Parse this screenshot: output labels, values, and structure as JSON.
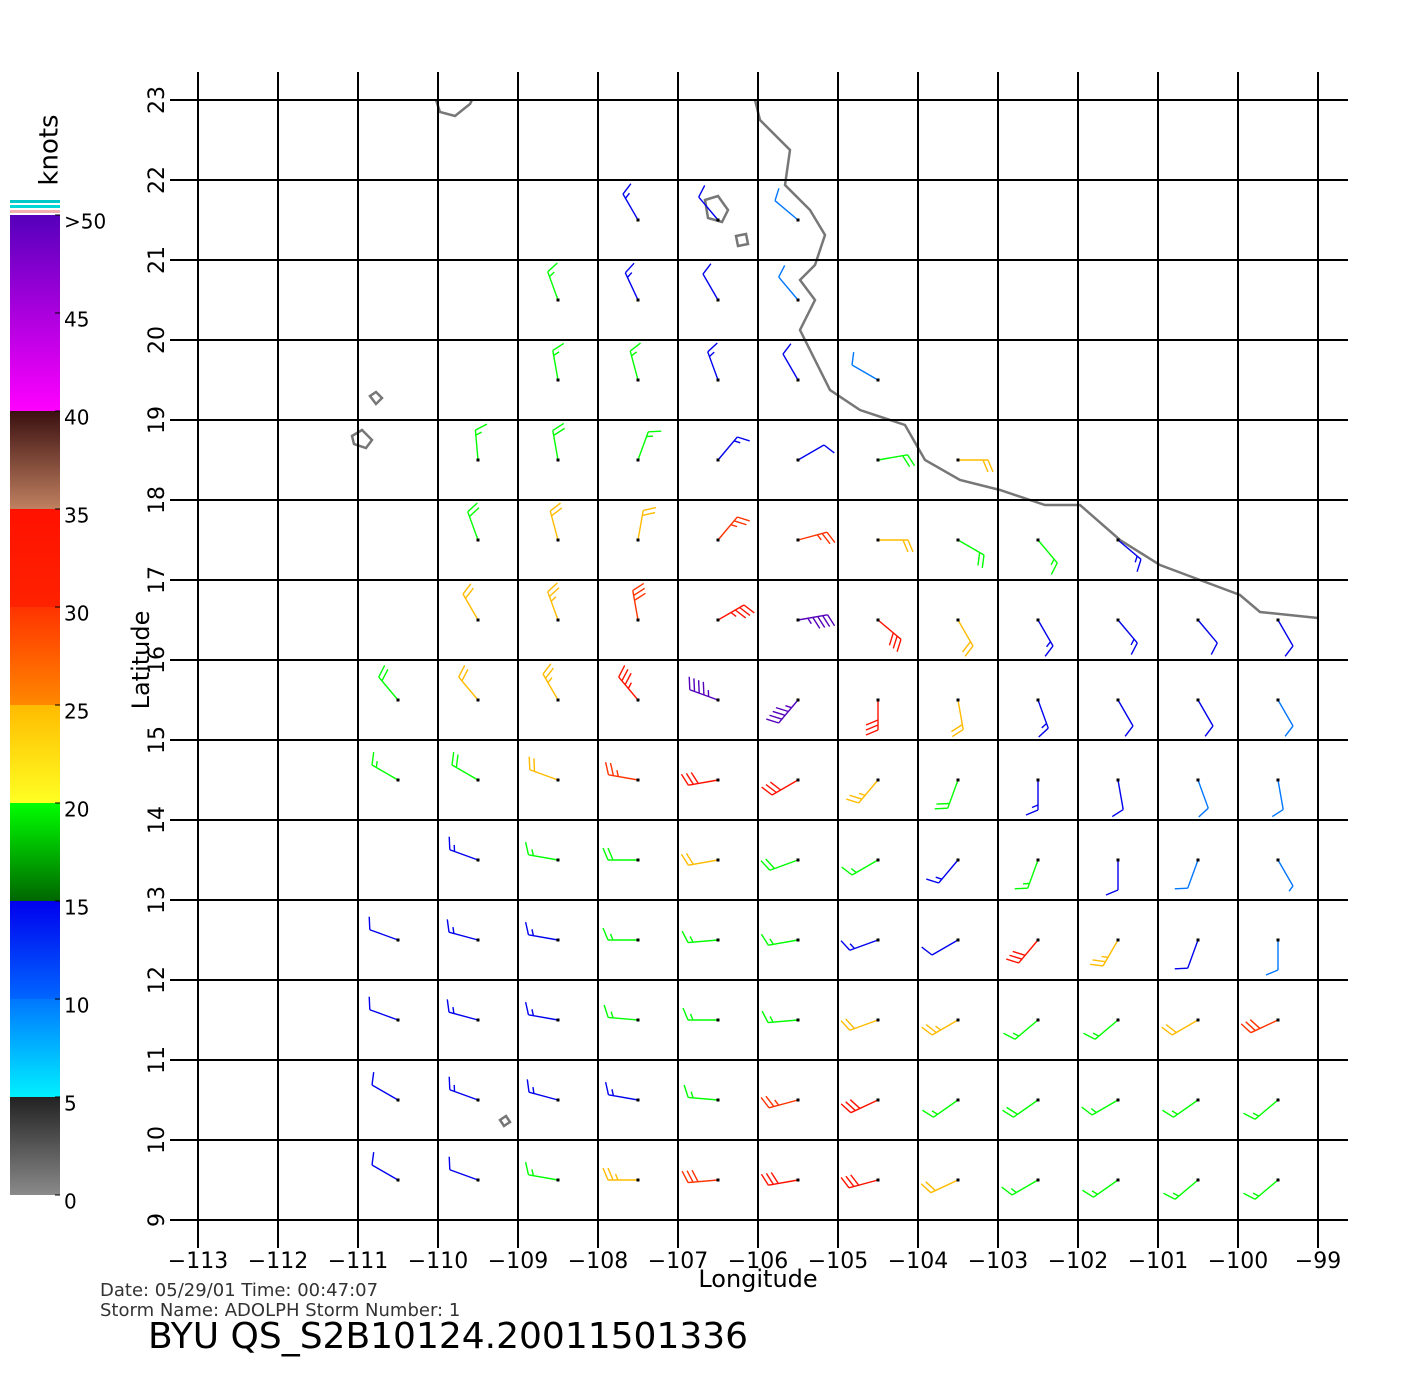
{
  "map": {
    "title": "BYU  QS_S2B10124.20011501336",
    "date_line": "Date:  05/29/01    Time:  00:47:07",
    "storm_line": "Storm  Name:  ADOLPH    Storm  Number:  1",
    "xlabel": "Longitude",
    "ylabel": "Latitude",
    "xlim": [
      -113,
      -99
    ],
    "ylim": [
      9,
      23
    ],
    "xticks": [
      {
        "value": -113,
        "label": "−113"
      },
      {
        "value": -112,
        "label": "−112"
      },
      {
        "value": -111,
        "label": "−111"
      },
      {
        "value": -110,
        "label": "−110"
      },
      {
        "value": -109,
        "label": "−109"
      },
      {
        "value": -108,
        "label": "−108"
      },
      {
        "value": -107,
        "label": "−107"
      },
      {
        "value": -106,
        "label": "−106"
      },
      {
        "value": -105,
        "label": "−105"
      },
      {
        "value": -104,
        "label": "−104"
      },
      {
        "value": -103,
        "label": "−103"
      },
      {
        "value": -102,
        "label": "−102"
      },
      {
        "value": -101,
        "label": "−101"
      },
      {
        "value": -100,
        "label": "−100"
      },
      {
        "value": -99,
        "label": "−99"
      }
    ],
    "yticks": [
      9,
      10,
      11,
      12,
      13,
      14,
      15,
      16,
      17,
      18,
      19,
      20,
      21,
      22,
      23
    ],
    "colorbar": {
      "title": "knots",
      "lim": [
        0,
        50
      ],
      "ticks": [
        0,
        5,
        10,
        15,
        20,
        25,
        30,
        35,
        40,
        45,
        {
          "value": 50,
          "label": ">50"
        }
      ],
      "bands": [
        {
          "from": 0,
          "to": 5,
          "colors": [
            "#8a8a8a",
            "#222222"
          ]
        },
        {
          "from": 5,
          "to": 10,
          "colors": [
            "#00f0ff",
            "#0077ff"
          ]
        },
        {
          "from": 10,
          "to": 15,
          "colors": [
            "#0066ff",
            "#0000ee"
          ]
        },
        {
          "from": 15,
          "to": 20,
          "colors": [
            "#006600",
            "#00ff00"
          ]
        },
        {
          "from": 20,
          "to": 25,
          "colors": [
            "#ffff22",
            "#ffbb00"
          ]
        },
        {
          "from": 25,
          "to": 30,
          "colors": [
            "#ff8800",
            "#ff3300"
          ]
        },
        {
          "from": 30,
          "to": 35,
          "colors": [
            "#ff2200",
            "#ff1100"
          ]
        },
        {
          "from": 35,
          "to": 40,
          "colors": [
            "#c08060",
            "#3a1010"
          ]
        },
        {
          "from": 40,
          "to": 50,
          "colors": [
            "#ff00ff",
            "#5500bb"
          ]
        }
      ]
    },
    "barbs": [
      [
        -107.5,
        21.5,
        14,
        330
      ],
      [
        -106.5,
        21.5,
        10,
        320
      ],
      [
        -105.5,
        21.5,
        8,
        310
      ],
      [
        -108.5,
        20.5,
        15,
        340
      ],
      [
        -107.5,
        20.5,
        13,
        335
      ],
      [
        -106.5,
        20.5,
        12,
        330
      ],
      [
        -105.5,
        20.5,
        9,
        320
      ],
      [
        -108.5,
        19.5,
        17,
        350
      ],
      [
        -107.5,
        19.5,
        16,
        345
      ],
      [
        -106.5,
        19.5,
        14,
        340
      ],
      [
        -105.5,
        19.5,
        12,
        330
      ],
      [
        -104.5,
        19.5,
        9,
        300
      ],
      [
        -109.5,
        18.5,
        17,
        355
      ],
      [
        -108.5,
        18.5,
        18,
        350
      ],
      [
        -107.5,
        18.5,
        17,
        20
      ],
      [
        -106.5,
        18.5,
        14,
        40
      ],
      [
        -105.5,
        18.5,
        12,
        60
      ],
      [
        -104.5,
        18.5,
        18,
        80
      ],
      [
        -103.5,
        18.5,
        20,
        90
      ],
      [
        -109.5,
        17.5,
        19,
        340
      ],
      [
        -108.5,
        17.5,
        22,
        345
      ],
      [
        -107.5,
        17.5,
        22,
        10
      ],
      [
        -106.5,
        17.5,
        25,
        40
      ],
      [
        -105.5,
        17.5,
        27,
        75
      ],
      [
        -104.5,
        17.5,
        22,
        90
      ],
      [
        -103.5,
        17.5,
        18,
        120
      ],
      [
        -102.5,
        17.5,
        17,
        140
      ],
      [
        -101.5,
        17.5,
        14,
        130
      ],
      [
        -109.5,
        16.5,
        20,
        330
      ],
      [
        -108.5,
        16.5,
        23,
        340
      ],
      [
        -107.5,
        16.5,
        28,
        350
      ],
      [
        -106.5,
        16.5,
        33,
        60
      ],
      [
        -105.5,
        16.5,
        43,
        80
      ],
      [
        -104.5,
        16.5,
        30,
        130
      ],
      [
        -103.5,
        16.5,
        20,
        150
      ],
      [
        -102.5,
        16.5,
        14,
        150
      ],
      [
        -101.5,
        16.5,
        13,
        140
      ],
      [
        -100.5,
        16.5,
        12,
        140
      ],
      [
        -99.5,
        16.5,
        10,
        150
      ],
      [
        -110.5,
        15.5,
        18,
        320
      ],
      [
        -109.5,
        15.5,
        22,
        320
      ],
      [
        -108.5,
        15.5,
        24,
        330
      ],
      [
        -107.5,
        15.5,
        33,
        320
      ],
      [
        -106.5,
        15.5,
        45,
        290
      ],
      [
        -105.5,
        15.5,
        44,
        220
      ],
      [
        -104.5,
        15.5,
        32,
        180
      ],
      [
        -103.5,
        15.5,
        22,
        170
      ],
      [
        -102.5,
        15.5,
        14,
        160
      ],
      [
        -101.5,
        15.5,
        12,
        150
      ],
      [
        -100.5,
        15.5,
        11,
        150
      ],
      [
        -99.5,
        15.5,
        9,
        150
      ],
      [
        -110.5,
        14.5,
        17,
        300
      ],
      [
        -109.5,
        14.5,
        19,
        300
      ],
      [
        -108.5,
        14.5,
        22,
        290
      ],
      [
        -107.5,
        14.5,
        26,
        280
      ],
      [
        -106.5,
        14.5,
        30,
        260
      ],
      [
        -105.5,
        14.5,
        30,
        240
      ],
      [
        -104.5,
        14.5,
        24,
        220
      ],
      [
        -103.5,
        14.5,
        18,
        200
      ],
      [
        -102.5,
        14.5,
        13,
        180
      ],
      [
        -101.5,
        14.5,
        12,
        170
      ],
      [
        -100.5,
        14.5,
        9,
        160
      ],
      [
        -99.5,
        14.5,
        8,
        170
      ],
      [
        -109.5,
        13.5,
        13,
        290
      ],
      [
        -108.5,
        13.5,
        15,
        280
      ],
      [
        -107.5,
        13.5,
        18,
        270
      ],
      [
        -106.5,
        13.5,
        20,
        260
      ],
      [
        -105.5,
        13.5,
        18,
        250
      ],
      [
        -104.5,
        13.5,
        16,
        240
      ],
      [
        -103.5,
        13.5,
        14,
        220
      ],
      [
        -102.5,
        13.5,
        15,
        200
      ],
      [
        -101.5,
        13.5,
        12,
        180
      ],
      [
        -100.5,
        13.5,
        8,
        200
      ],
      [
        -99.5,
        13.5,
        7,
        150
      ],
      [
        -110.5,
        12.5,
        12,
        290
      ],
      [
        -109.5,
        12.5,
        13,
        285
      ],
      [
        -108.5,
        12.5,
        14,
        280
      ],
      [
        -107.5,
        12.5,
        16,
        270
      ],
      [
        -106.5,
        12.5,
        17,
        265
      ],
      [
        -105.5,
        12.5,
        16,
        260
      ],
      [
        -104.5,
        12.5,
        14,
        250
      ],
      [
        -103.5,
        12.5,
        12,
        240
      ],
      [
        -102.5,
        12.5,
        30,
        220
      ],
      [
        -101.5,
        12.5,
        24,
        210
      ],
      [
        -100.5,
        12.5,
        12,
        200
      ],
      [
        -99.5,
        12.5,
        8,
        180
      ],
      [
        -110.5,
        11.5,
        12,
        290
      ],
      [
        -109.5,
        11.5,
        13,
        285
      ],
      [
        -108.5,
        11.5,
        14,
        280
      ],
      [
        -107.5,
        11.5,
        15,
        275
      ],
      [
        -106.5,
        11.5,
        16,
        270
      ],
      [
        -105.5,
        11.5,
        15,
        265
      ],
      [
        -104.5,
        11.5,
        20,
        250
      ],
      [
        -103.5,
        11.5,
        24,
        240
      ],
      [
        -102.5,
        11.5,
        17,
        230
      ],
      [
        -101.5,
        11.5,
        16,
        230
      ],
      [
        -100.5,
        11.5,
        22,
        240
      ],
      [
        -99.5,
        11.5,
        28,
        245
      ],
      [
        -110.5,
        10.5,
        12,
        300
      ],
      [
        -109.5,
        10.5,
        13,
        290
      ],
      [
        -108.5,
        10.5,
        14,
        285
      ],
      [
        -107.5,
        10.5,
        13,
        280
      ],
      [
        -106.5,
        10.5,
        15,
        275
      ],
      [
        -105.5,
        10.5,
        26,
        255
      ],
      [
        -104.5,
        10.5,
        30,
        245
      ],
      [
        -103.5,
        10.5,
        16,
        235
      ],
      [
        -102.5,
        10.5,
        18,
        235
      ],
      [
        -101.5,
        10.5,
        17,
        240
      ],
      [
        -100.5,
        10.5,
        16,
        235
      ],
      [
        -99.5,
        10.5,
        15,
        230
      ],
      [
        -110.5,
        9.5,
        12,
        300
      ],
      [
        -109.5,
        9.5,
        12,
        290
      ],
      [
        -108.5,
        9.5,
        15,
        280
      ],
      [
        -107.5,
        9.5,
        24,
        270
      ],
      [
        -106.5,
        9.5,
        28,
        265
      ],
      [
        -105.5,
        9.5,
        31,
        260
      ],
      [
        -104.5,
        9.5,
        30,
        255
      ],
      [
        -103.5,
        9.5,
        22,
        245
      ],
      [
        -102.5,
        9.5,
        17,
        240
      ],
      [
        -101.5,
        9.5,
        16,
        235
      ],
      [
        -100.5,
        9.5,
        16,
        230
      ],
      [
        -99.5,
        9.5,
        17,
        230
      ]
    ]
  }
}
